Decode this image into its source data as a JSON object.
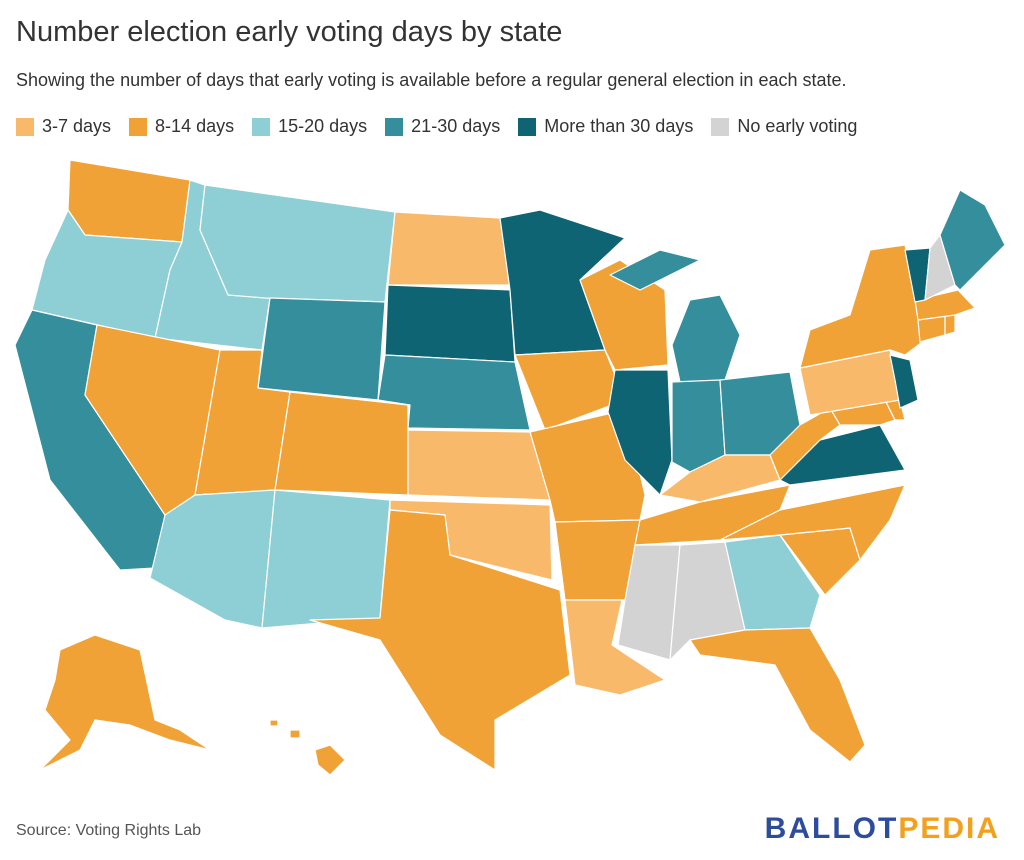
{
  "title": "Number election early voting days by state",
  "subtitle": "Showing the number of days that early voting is available before a regular general election in each state.",
  "legend": [
    {
      "label": "3-7 days",
      "color": "#f9b96a"
    },
    {
      "label": "8-14 days",
      "color": "#f0a236"
    },
    {
      "label": "15-20 days",
      "color": "#8ecfd6"
    },
    {
      "label": "21-30 days",
      "color": "#348e9b"
    },
    {
      "label": "More than 30 days",
      "color": "#0f6473"
    },
    {
      "label": "No early voting",
      "color": "#d3d3d3"
    }
  ],
  "states": [
    {
      "id": "WA",
      "category": "8-14 days"
    },
    {
      "id": "OR",
      "category": "15-20 days"
    },
    {
      "id": "CA",
      "category": "21-30 days"
    },
    {
      "id": "ID",
      "category": "15-20 days"
    },
    {
      "id": "NV",
      "category": "8-14 days"
    },
    {
      "id": "MT",
      "category": "15-20 days"
    },
    {
      "id": "WY",
      "category": "21-30 days"
    },
    {
      "id": "UT",
      "category": "8-14 days"
    },
    {
      "id": "AZ",
      "category": "15-20 days"
    },
    {
      "id": "CO",
      "category": "8-14 days"
    },
    {
      "id": "NM",
      "category": "15-20 days"
    },
    {
      "id": "ND",
      "category": "3-7 days"
    },
    {
      "id": "SD",
      "category": "More than 30 days"
    },
    {
      "id": "NE",
      "category": "21-30 days"
    },
    {
      "id": "KS",
      "category": "3-7 days"
    },
    {
      "id": "OK",
      "category": "3-7 days"
    },
    {
      "id": "TX",
      "category": "8-14 days"
    },
    {
      "id": "MN",
      "category": "More than 30 days"
    },
    {
      "id": "IA",
      "category": "8-14 days"
    },
    {
      "id": "MO",
      "category": "8-14 days"
    },
    {
      "id": "AR",
      "category": "8-14 days"
    },
    {
      "id": "LA",
      "category": "3-7 days"
    },
    {
      "id": "WI",
      "category": "8-14 days"
    },
    {
      "id": "IL",
      "category": "More than 30 days"
    },
    {
      "id": "MI",
      "category": "21-30 days"
    },
    {
      "id": "IN",
      "category": "21-30 days"
    },
    {
      "id": "OH",
      "category": "21-30 days"
    },
    {
      "id": "KY",
      "category": "3-7 days"
    },
    {
      "id": "TN",
      "category": "8-14 days"
    },
    {
      "id": "MS",
      "category": "No early voting"
    },
    {
      "id": "AL",
      "category": "No early voting"
    },
    {
      "id": "GA",
      "category": "15-20 days"
    },
    {
      "id": "FL",
      "category": "8-14 days"
    },
    {
      "id": "SC",
      "category": "8-14 days"
    },
    {
      "id": "NC",
      "category": "8-14 days"
    },
    {
      "id": "VA",
      "category": "More than 30 days"
    },
    {
      "id": "WV",
      "category": "8-14 days"
    },
    {
      "id": "MD",
      "category": "8-14 days"
    },
    {
      "id": "DE",
      "category": "8-14 days"
    },
    {
      "id": "PA",
      "category": "3-7 days"
    },
    {
      "id": "NJ",
      "category": "More than 30 days"
    },
    {
      "id": "NY",
      "category": "8-14 days"
    },
    {
      "id": "CT",
      "category": "8-14 days"
    },
    {
      "id": "RI",
      "category": "8-14 days"
    },
    {
      "id": "MA",
      "category": "8-14 days"
    },
    {
      "id": "VT",
      "category": "More than 30 days"
    },
    {
      "id": "NH",
      "category": "No early voting"
    },
    {
      "id": "ME",
      "category": "21-30 days"
    },
    {
      "id": "AK",
      "category": "8-14 days"
    },
    {
      "id": "HI",
      "category": "8-14 days"
    }
  ],
  "source": "Source: Voting Rights Lab",
  "logo": {
    "part1": "BALLOT",
    "part2": "PEDIA"
  }
}
